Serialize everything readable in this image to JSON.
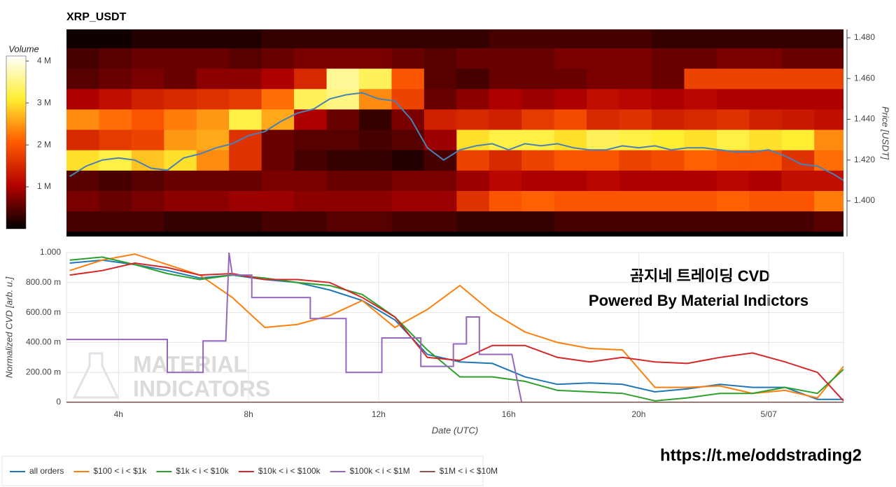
{
  "chart_data": [
    {
      "type": "heatmap",
      "title": "XRP_USDT",
      "y_label": "Price [USDT]",
      "xlim": [
        2.4,
        26.3
      ],
      "ylim": [
        1.3825,
        1.4841
      ],
      "yticks": [
        {
          "value": 1.4,
          "label": "1.400"
        },
        {
          "value": 1.42,
          "label": "1.420"
        },
        {
          "value": 1.44,
          "label": "1.440"
        },
        {
          "value": 1.46,
          "label": "1.460"
        },
        {
          "value": 1.48,
          "label": "1.480"
        }
      ],
      "x_bins": [
        2.4,
        3.4,
        4.4,
        5.4,
        6.4,
        7.4,
        8.4,
        9.4,
        10.4,
        11.4,
        12.4,
        13.4,
        14.4,
        15.4,
        16.4,
        17.4,
        18.4,
        19.4,
        20.4,
        21.4,
        22.4,
        23.4,
        24.4,
        25.4,
        26.4
      ],
      "y_bins": [
        1.385,
        1.395,
        1.405,
        1.415,
        1.425,
        1.435,
        1.445,
        1.455,
        1.465,
        1.475,
        1.485
      ],
      "z": [
        [
          0.4,
          0.4,
          0.4,
          0.3,
          0.3,
          0.3,
          0.4,
          0.4,
          0.5,
          0.5,
          0.4,
          0.4,
          0.3,
          0.3,
          0.3,
          0.4,
          0.4,
          0.4,
          0.4,
          0.4,
          0.4,
          0.4,
          0.4,
          0.5
        ],
        [
          0.7,
          0.6,
          0.7,
          0.8,
          0.8,
          0.9,
          0.9,
          0.8,
          0.8,
          0.8,
          0.9,
          0.9,
          1.6,
          2.0,
          2.1,
          2.0,
          2.0,
          2.0,
          2.0,
          2.0,
          2.1,
          2.0,
          2.0,
          2.3
        ],
        [
          0.5,
          0.4,
          0.5,
          0.6,
          0.6,
          0.6,
          0.7,
          0.7,
          0.6,
          0.6,
          0.7,
          0.7,
          0.9,
          1.1,
          1.0,
          1.0,
          1.1,
          1.0,
          1.0,
          1.0,
          1.1,
          1.0,
          1.2,
          1.2
        ],
        [
          3.0,
          3.2,
          2.8,
          3.0,
          2.4,
          1.6,
          0.6,
          0.4,
          0.3,
          0.3,
          0.2,
          0.4,
          1.8,
          1.5,
          1.8,
          2.0,
          2.0,
          1.8,
          1.9,
          2.1,
          2.0,
          2.0,
          1.6,
          2.2
        ],
        [
          1.5,
          1.7,
          1.8,
          2.5,
          2.6,
          1.6,
          0.6,
          0.5,
          0.5,
          0.4,
          0.5,
          0.9,
          3.0,
          3.2,
          3.2,
          3.0,
          3.3,
          3.2,
          3.1,
          3.0,
          3.2,
          3.0,
          3.1,
          2.4
        ],
        [
          2.4,
          2.2,
          2.0,
          2.3,
          2.5,
          3.2,
          2.6,
          1.0,
          0.6,
          0.3,
          0.7,
          1.4,
          1.5,
          1.4,
          1.7,
          1.9,
          1.5,
          1.6,
          1.4,
          1.5,
          1.6,
          1.4,
          1.3,
          1.2
        ],
        [
          1.0,
          1.2,
          1.4,
          1.5,
          1.6,
          1.7,
          2.2,
          3.3,
          3.5,
          2.4,
          1.8,
          0.6,
          0.8,
          1.0,
          0.9,
          1.0,
          1.2,
          1.1,
          1.0,
          1.1,
          1.0,
          1.0,
          1.0,
          1.0
        ],
        [
          0.5,
          0.6,
          0.7,
          0.6,
          0.8,
          0.8,
          1.0,
          1.5,
          3.6,
          3.3,
          2.0,
          0.5,
          0.4,
          0.6,
          0.6,
          0.6,
          0.7,
          0.7,
          0.6,
          1.8,
          1.8,
          1.8,
          1.8,
          1.8
        ],
        [
          0.4,
          0.5,
          0.6,
          0.6,
          0.6,
          0.5,
          0.6,
          0.7,
          0.7,
          0.7,
          0.6,
          0.5,
          0.6,
          0.6,
          0.6,
          0.7,
          0.7,
          0.7,
          0.6,
          0.6,
          0.7,
          0.7,
          0.6,
          0.6
        ],
        [
          0.1,
          0.1,
          0.2,
          0.2,
          0.2,
          0.2,
          0.3,
          0.3,
          0.3,
          0.3,
          0.3,
          0.3,
          0.3,
          0.4,
          0.4,
          0.4,
          0.4,
          0.4,
          0.3,
          0.3,
          0.3,
          0.3,
          0.3,
          0.3
        ]
      ],
      "colormap": [
        "#000000",
        "#b40000",
        "#ff5a00",
        "#ffee30",
        "#ffffff"
      ],
      "colorbar": {
        "label": "Volume",
        "lim": [
          0,
          4.12
        ],
        "ticks": [
          {
            "value": 1,
            "label": "1 M"
          },
          {
            "value": 2,
            "label": "2 M"
          },
          {
            "value": 3,
            "label": "3 M"
          },
          {
            "value": 4,
            "label": "4 M"
          }
        ]
      },
      "line": {
        "color": "#4a80b4",
        "x": [
          2.5,
          3,
          3.5,
          4,
          4.5,
          5,
          5.5,
          6,
          6.5,
          7,
          7.5,
          8,
          8.5,
          9,
          9.5,
          10,
          10.5,
          11,
          11.5,
          12,
          12.5,
          13,
          13.5,
          14,
          14.5,
          15,
          15.5,
          16,
          16.5,
          17,
          17.5,
          18,
          18.5,
          19,
          19.5,
          20,
          20.5,
          21,
          21.5,
          22,
          22.5,
          23,
          23.5,
          24,
          24.5,
          25,
          25.5,
          26,
          26.3
        ],
        "values": [
          1.412,
          1.417,
          1.42,
          1.421,
          1.42,
          1.416,
          1.415,
          1.421,
          1.423,
          1.426,
          1.428,
          1.432,
          1.434,
          1.439,
          1.443,
          1.445,
          1.45,
          1.452,
          1.453,
          1.45,
          1.449,
          1.44,
          1.426,
          1.42,
          1.425,
          1.427,
          1.428,
          1.425,
          1.428,
          1.427,
          1.428,
          1.426,
          1.425,
          1.425,
          1.427,
          1.426,
          1.427,
          1.425,
          1.426,
          1.426,
          1.425,
          1.424,
          1.424,
          1.425,
          1.422,
          1.418,
          1.417,
          1.413,
          1.41
        ]
      }
    },
    {
      "type": "line",
      "x_label": "Date (UTC)",
      "y_label": "Normalized CVD [arb. u.]",
      "xlim": [
        2.4,
        26.3
      ],
      "ylim": [
        0,
        1
      ],
      "grid": true,
      "xticks": [
        {
          "value": 4,
          "label": "4h"
        },
        {
          "value": 8,
          "label": "8h"
        },
        {
          "value": 12,
          "label": "12h"
        },
        {
          "value": 16,
          "label": "16h"
        },
        {
          "value": 20,
          "label": "20h"
        },
        {
          "value": 24,
          "label": "5/07"
        }
      ],
      "yticks": [
        0,
        {
          "value": 0.2,
          "label": "200.00 m"
        },
        {
          "value": 0.4,
          "label": "400.00 m"
        },
        {
          "value": 0.6,
          "label": "600.00 m"
        },
        {
          "value": 0.8,
          "label": "800.00 m"
        },
        {
          "value": 1,
          "label": "1.000"
        }
      ],
      "x": [
        2.5,
        3.5,
        4.5,
        5.5,
        6.5,
        7.5,
        8.5,
        9.5,
        10.5,
        11.5,
        12.5,
        13.5,
        14.5,
        15.5,
        16.5,
        17.5,
        18.5,
        19.5,
        20.5,
        21.5,
        22.5,
        23.5,
        24.5,
        25.5,
        26.3
      ],
      "series": [
        {
          "name": "all orders",
          "color": "#1f77b4",
          "values": [
            0.93,
            0.95,
            0.92,
            0.88,
            0.83,
            0.85,
            0.82,
            0.8,
            0.75,
            0.68,
            0.55,
            0.32,
            0.27,
            0.26,
            0.17,
            0.12,
            0.13,
            0.12,
            0.07,
            0.09,
            0.12,
            0.1,
            0.1,
            0.02,
            0.02
          ]
        },
        {
          "name": "$100 < i < $1k",
          "color": "#ff7f0e",
          "values": [
            0.88,
            0.95,
            0.99,
            0.92,
            0.85,
            0.7,
            0.5,
            0.52,
            0.58,
            0.68,
            0.5,
            0.62,
            0.78,
            0.6,
            0.47,
            0.4,
            0.36,
            0.35,
            0.1,
            0.1,
            0.11,
            0.06,
            0.08,
            0.03,
            0.24
          ]
        },
        {
          "name": "$1k < i < $10k",
          "color": "#2ca02c",
          "values": [
            0.95,
            0.97,
            0.92,
            0.86,
            0.82,
            0.85,
            0.83,
            0.8,
            0.78,
            0.72,
            0.57,
            0.35,
            0.17,
            0.17,
            0.14,
            0.08,
            0.07,
            0.06,
            0.01,
            0.03,
            0.06,
            0.06,
            0.1,
            0.06,
            0.22
          ]
        },
        {
          "name": "$10k < i < $100k",
          "color": "#d62728",
          "values": [
            0.85,
            0.88,
            0.93,
            0.9,
            0.85,
            0.86,
            0.82,
            0.82,
            0.8,
            0.7,
            0.57,
            0.3,
            0.28,
            0.38,
            0.38,
            0.3,
            0.27,
            0.3,
            0.27,
            0.26,
            0.3,
            0.33,
            0.27,
            0.2,
            0.01
          ]
        },
        {
          "name": "$100k < i < $1M",
          "color": "#9467bd",
          "x": [
            2.4,
            5.5,
            5.5,
            6.6,
            6.6,
            7.3,
            7.4,
            7.5,
            8.1,
            8.1,
            9.9,
            9.9,
            11.0,
            11.0,
            12.1,
            12.1,
            13.3,
            13.3,
            14.3,
            14.3,
            14.7,
            14.7,
            15.1,
            15.1,
            16.1,
            16.4,
            26.3
          ],
          "values": [
            0.42,
            0.42,
            0.2,
            0.2,
            0.41,
            0.41,
            1.0,
            0.85,
            0.85,
            0.7,
            0.7,
            0.56,
            0.56,
            0.2,
            0.2,
            0.43,
            0.43,
            0.24,
            0.24,
            0.39,
            0.39,
            0.57,
            0.57,
            0.32,
            0.32,
            0,
            0
          ]
        },
        {
          "name": "$1M < i < $10M",
          "color": "#8c564b",
          "x": [
            2.4,
            26.3
          ],
          "values": [
            0,
            0
          ]
        }
      ],
      "annotations": [
        "곰지네 트레이딩 CVD",
        "Powered By Material Indictors"
      ]
    }
  ],
  "watermark": [
    "MATERIAL",
    "INDICATORS"
  ],
  "link": "https://t.me/oddstrading2"
}
